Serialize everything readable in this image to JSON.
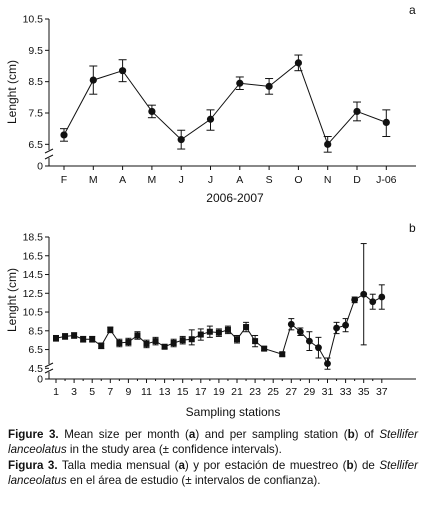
{
  "chart_data": [
    {
      "type": "line",
      "panel_label": "a",
      "categories": [
        "F",
        "M",
        "A",
        "M",
        "J",
        "J",
        "A",
        "S",
        "O",
        "N",
        "D",
        "J-06"
      ],
      "series": [
        {
          "values": [
            6.8,
            8.55,
            8.85,
            7.55,
            6.65,
            7.3,
            8.45,
            8.35,
            9.1,
            6.5,
            7.55,
            7.2
          ],
          "ci_low": [
            6.6,
            8.1,
            8.5,
            7.35,
            6.35,
            6.95,
            8.25,
            8.1,
            8.85,
            6.25,
            7.25,
            6.75
          ],
          "ci_high": [
            7.0,
            9.0,
            9.2,
            7.75,
            6.95,
            7.6,
            8.65,
            8.6,
            9.35,
            6.75,
            7.85,
            7.6
          ]
        }
      ],
      "xlabel": "2006-2007",
      "ylabel": "Lenght (cm)",
      "yticks": [
        "10.5",
        "9.5",
        "8.5",
        "7.5",
        "6.5",
        "0"
      ],
      "ylim": [
        6.0,
        10.5
      ],
      "axis_break": true
    },
    {
      "type": "line",
      "panel_label": "b",
      "x": [
        1,
        2,
        3,
        4,
        5,
        6,
        7,
        8,
        9,
        10,
        11,
        12,
        13,
        14,
        15,
        16,
        17,
        18,
        19,
        20,
        21,
        22,
        23,
        24,
        25,
        26,
        27,
        28,
        29,
        30,
        31,
        32,
        33,
        34,
        35,
        36,
        37
      ],
      "xticks": [
        "1",
        "3",
        "5",
        "7",
        "9",
        "11",
        "13",
        "15",
        "17",
        "19",
        "21",
        "23",
        "25",
        "27",
        "29",
        "31",
        "33",
        "35",
        "37"
      ],
      "series": [
        {
          "values": [
            7.7,
            7.9,
            8.0,
            7.6,
            7.6,
            6.9,
            8.6,
            7.2,
            7.3,
            8.0,
            7.1,
            7.4,
            6.8,
            7.2,
            7.5,
            7.6,
            8.1,
            8.4,
            8.3,
            8.6,
            7.6,
            8.9,
            7.4,
            6.6,
            null,
            6.0,
            9.2,
            8.4,
            7.4,
            6.7,
            5.0,
            8.8,
            9.1,
            11.8,
            12.4,
            11.6,
            12.1
          ],
          "ci_low": [
            7.4,
            7.6,
            7.7,
            7.3,
            7.3,
            6.6,
            8.3,
            6.8,
            6.9,
            7.6,
            6.7,
            7.0,
            6.6,
            6.8,
            7.1,
            7.0,
            7.5,
            7.8,
            7.9,
            8.2,
            7.2,
            8.4,
            6.8,
            6.4,
            null,
            5.8,
            8.6,
            8.0,
            6.4,
            5.6,
            4.4,
            8.2,
            8.4,
            11.5,
            7.0,
            10.8,
            10.8
          ],
          "ci_high": [
            8.0,
            8.2,
            8.3,
            7.9,
            7.9,
            7.2,
            8.9,
            7.6,
            7.7,
            8.4,
            7.5,
            7.8,
            7.0,
            7.6,
            7.9,
            8.6,
            8.7,
            9.0,
            8.7,
            9.0,
            8.0,
            9.4,
            8.0,
            6.8,
            null,
            6.2,
            9.8,
            8.8,
            8.4,
            7.8,
            5.6,
            9.4,
            9.8,
            12.1,
            17.8,
            12.4,
            13.4
          ]
        }
      ],
      "xlabel": "Sampling stations",
      "ylabel": "Lenght (cm)",
      "yticks": [
        "18.5",
        "16.5",
        "14.5",
        "12.5",
        "10.5",
        "8.5",
        "6.5",
        "4.5",
        "0"
      ],
      "ylim": [
        4.0,
        18.5
      ],
      "axis_break": true
    }
  ],
  "captions": {
    "en": {
      "lead": "Figure 3.",
      "parts": [
        " Mean size per month (",
        "a",
        ") and per sampling station (",
        "b",
        ") of ",
        "Stellifer lanceolatus",
        " in the study area (± confidence intervals)."
      ]
    },
    "es": {
      "lead": "Figura 3.",
      "parts": [
        " Talla media mensual (",
        "a",
        ") y por estación de muestreo (",
        "b",
        ") de ",
        "Stellifer lanceolatus",
        " en el área de estudio (± intervalos de confianza)."
      ]
    }
  }
}
